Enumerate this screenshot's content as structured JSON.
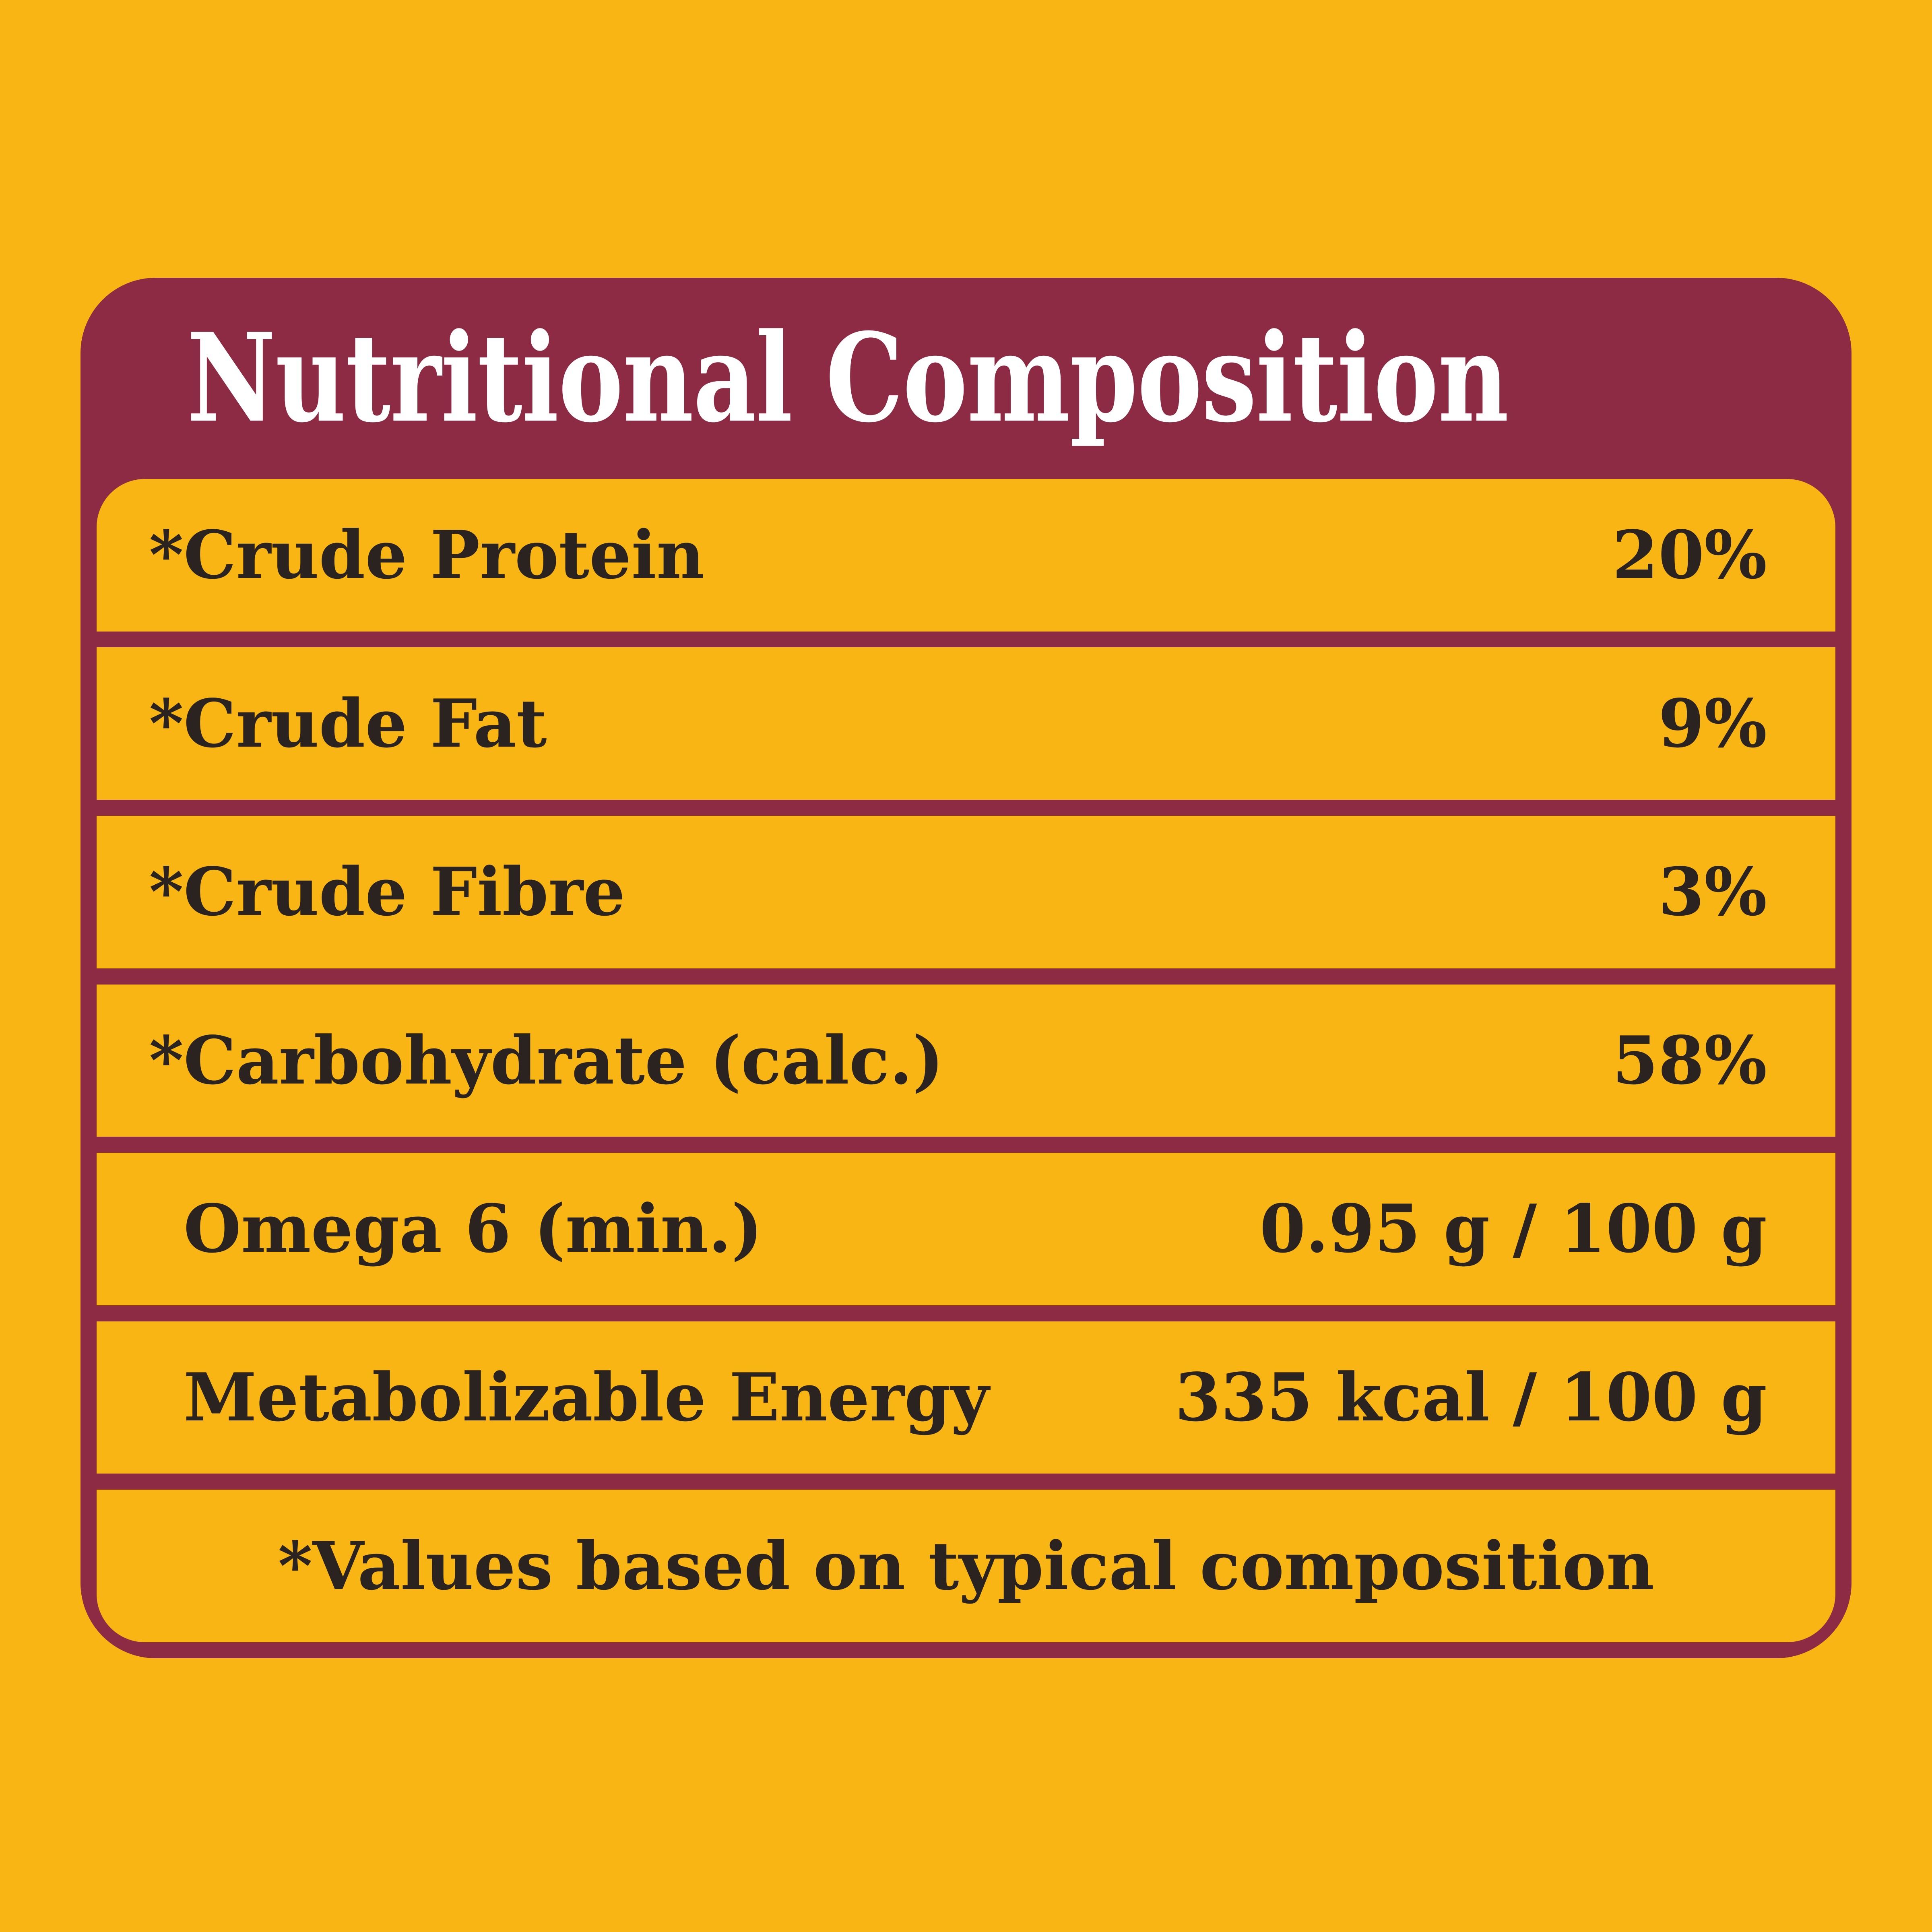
{
  "title": "Nutritional Composition",
  "colors": {
    "yellow": "#F9B513",
    "maroon": "#8D2B44",
    "text_dark": "#2A2320",
    "white": "#FFFFFF"
  },
  "table": {
    "rows": [
      {
        "star": "*",
        "label": "Crude Protein",
        "value": "20%"
      },
      {
        "star": "*",
        "label": "Crude Fat",
        "value": "9%"
      },
      {
        "star": "*",
        "label": "Crude Fibre",
        "value": "3%"
      },
      {
        "star": "*",
        "label": "Carbohydrate (calc.)",
        "value": "58%"
      },
      {
        "star": "",
        "label": "Omega 6 (min.)",
        "value": "0.95 g / 100 g"
      },
      {
        "star": "",
        "label": "Metabolizable Energy",
        "value": "335 kcal / 100 g"
      }
    ],
    "footnote": "*Values based on typical composition"
  }
}
